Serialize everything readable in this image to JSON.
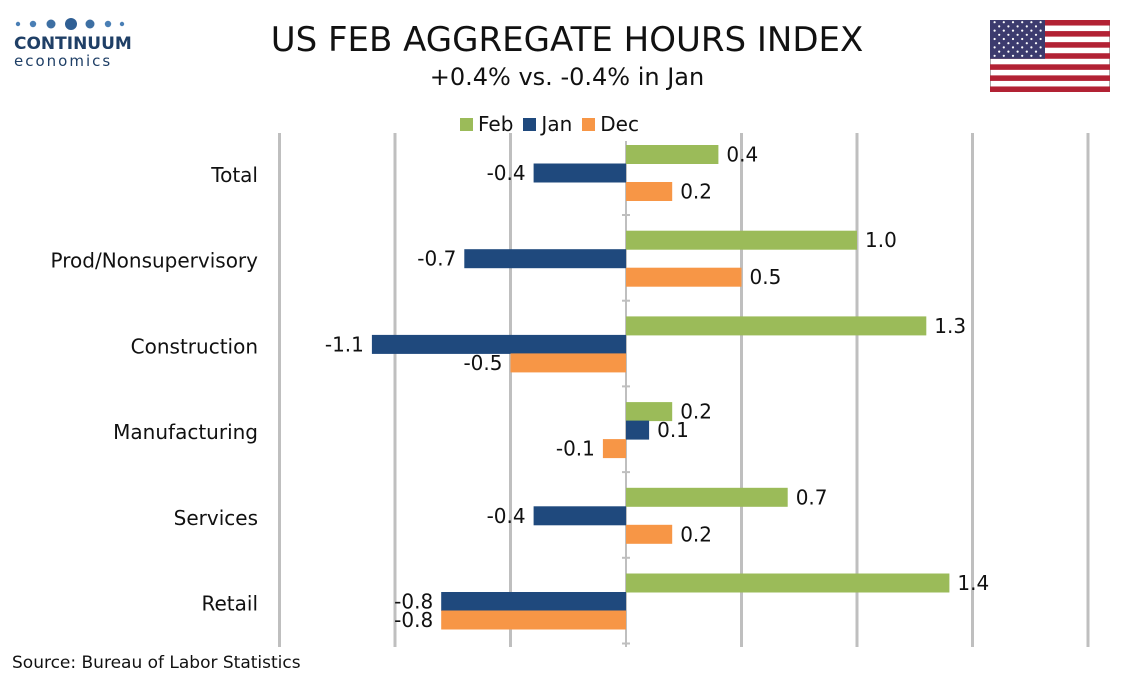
{
  "logo": {
    "word": "CONTINUUM",
    "sub": "economics"
  },
  "header": {
    "title": "US FEB AGGREGATE HOURS INDEX",
    "subtitle": "+0.4% vs. -0.4% in Jan"
  },
  "flag": {
    "icon": "us-flag-icon"
  },
  "source": "Source: Bureau of Labor Statistics",
  "colors": {
    "feb": "#9bbb59",
    "jan": "#1f497d",
    "dec": "#f79646",
    "grid": "#bfbfbf"
  },
  "chart_data": {
    "type": "bar",
    "orientation": "horizontal",
    "title": "US FEB AGGREGATE HOURS INDEX",
    "subtitle": "+0.4% vs. -0.4% in Jan",
    "categories": [
      "Total",
      "Prod/Nonsupervisory",
      "Construction",
      "Manufacturing",
      "Services",
      "Retail"
    ],
    "series": [
      {
        "name": "Feb",
        "values": [
          0.4,
          1.0,
          1.3,
          0.2,
          0.7,
          1.4
        ],
        "labels": [
          "0.4",
          "1.0",
          "1.3",
          "0.2",
          "0.7",
          "1.4"
        ]
      },
      {
        "name": "Jan",
        "values": [
          -0.4,
          -0.7,
          -1.1,
          0.1,
          -0.4,
          -0.8
        ],
        "labels": [
          "-0.4",
          "-0.7",
          "-1.1",
          "0.1",
          "-0.4",
          "-0.8"
        ]
      },
      {
        "name": "Dec",
        "values": [
          0.2,
          0.5,
          -0.5,
          -0.1,
          0.2,
          -0.8
        ],
        "labels": [
          "0.2",
          "0.5",
          "-0.5",
          "-0.1",
          "0.2",
          "-0.8"
        ]
      }
    ],
    "xlim": [
      -1.5,
      2.0
    ],
    "grid": true,
    "legend": "top"
  }
}
